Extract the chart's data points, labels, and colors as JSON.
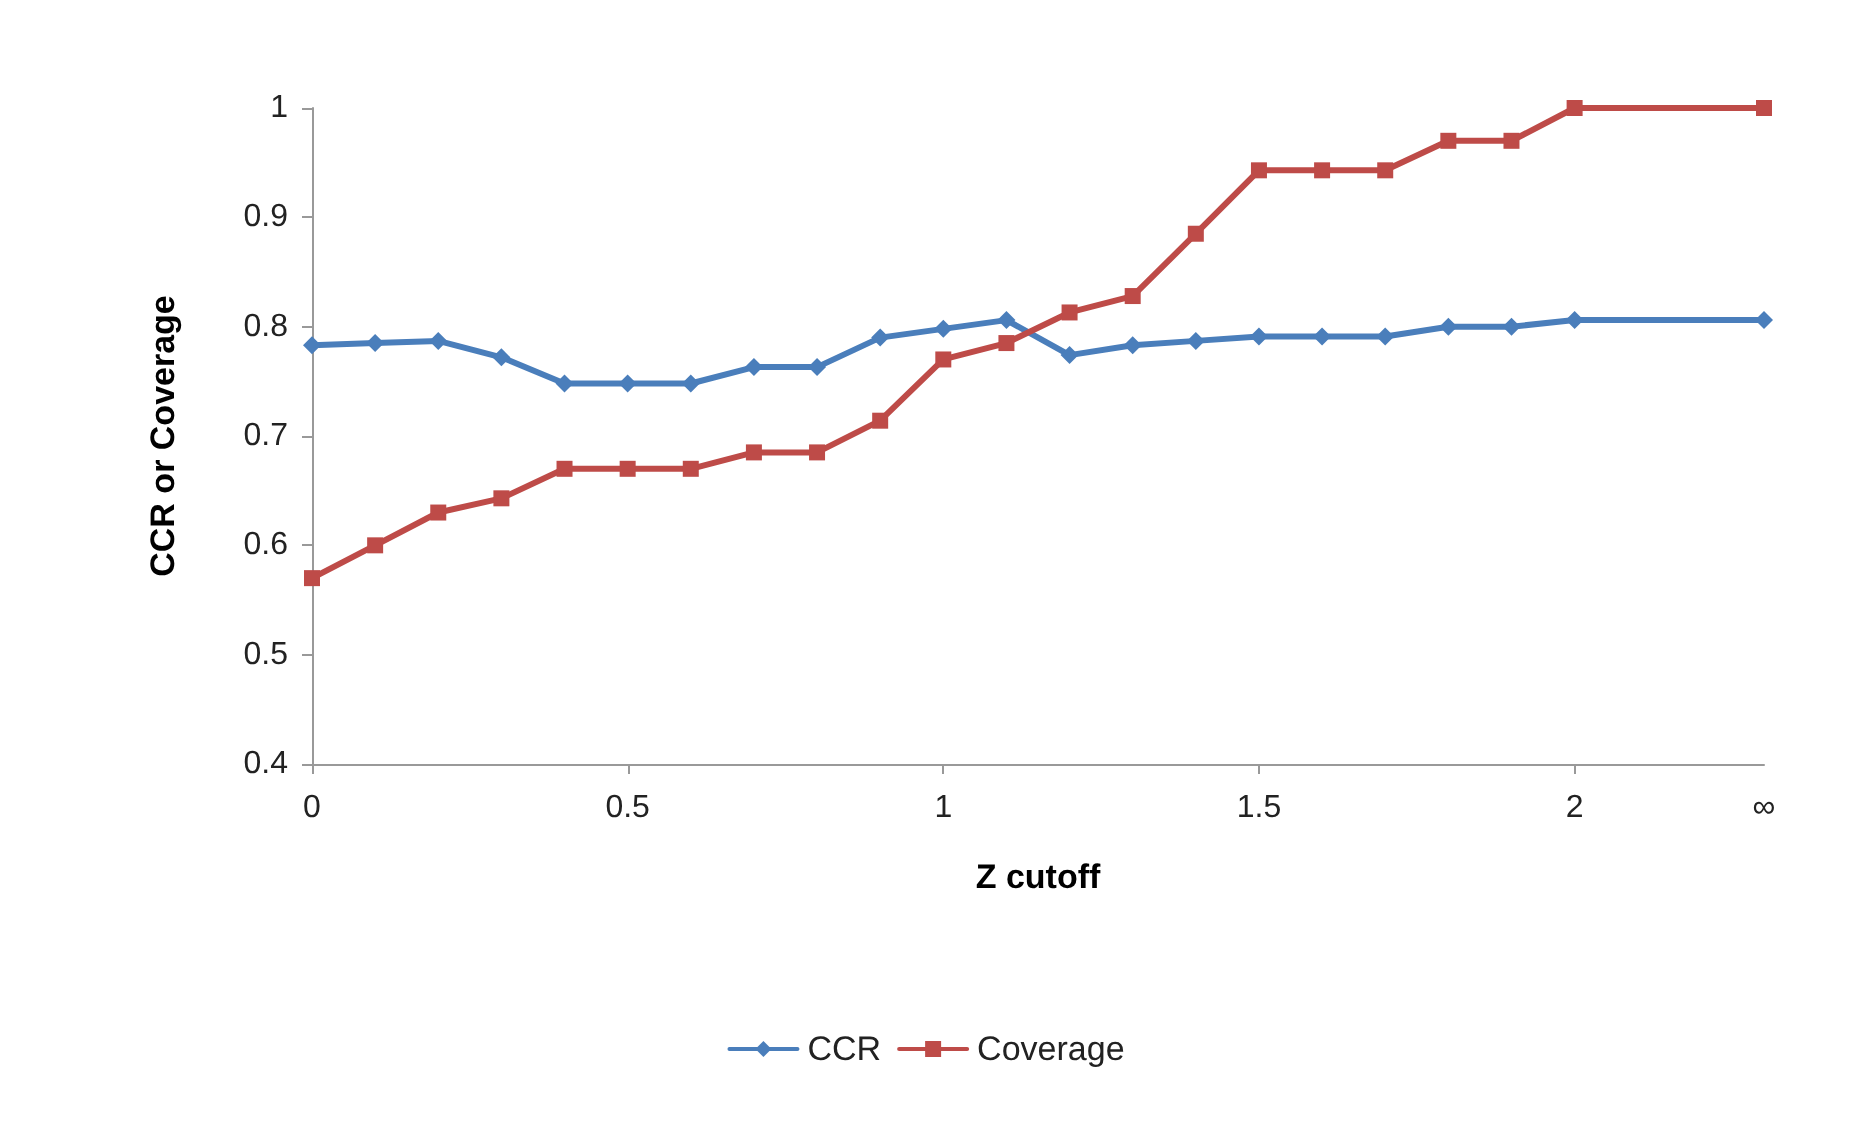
{
  "chart_data": {
    "type": "line",
    "xlabel": "Z cutoff",
    "ylabel": "CCR or Coverage",
    "x": [
      0,
      0.1,
      0.2,
      0.3,
      0.4,
      0.5,
      0.6,
      0.7,
      0.8,
      0.9,
      1,
      1.1,
      1.2,
      1.3,
      1.4,
      1.5,
      1.6,
      1.7,
      1.8,
      1.9,
      2,
      2.3
    ],
    "series": [
      {
        "name": "CCR",
        "color": "#4a7ebb",
        "marker": "diamond",
        "values": [
          0.783,
          0.785,
          0.787,
          0.772,
          0.748,
          0.748,
          0.748,
          0.763,
          0.763,
          0.79,
          0.798,
          0.806,
          0.774,
          0.783,
          0.787,
          0.791,
          0.791,
          0.791,
          0.8,
          0.8,
          0.806,
          0.806
        ]
      },
      {
        "name": "Coverage",
        "color": "#be4b48",
        "marker": "square",
        "values": [
          0.57,
          0.6,
          0.63,
          0.643,
          0.67,
          0.67,
          0.67,
          0.685,
          0.685,
          0.714,
          0.77,
          0.785,
          0.813,
          0.828,
          0.885,
          0.943,
          0.943,
          0.943,
          0.97,
          0.97,
          1.0,
          1.0
        ]
      }
    ],
    "xlim": [
      0,
      2.3
    ],
    "xticks": [
      0,
      0.5,
      1,
      1.5,
      2,
      {
        "value": 2.3,
        "label": "∞"
      }
    ],
    "ylim": [
      0.4,
      1
    ],
    "yticks": [
      0.4,
      0.5,
      0.6,
      0.7,
      0.8,
      0.9,
      1
    ],
    "grid": false,
    "legend": "bottom",
    "line_style": "solid"
  }
}
